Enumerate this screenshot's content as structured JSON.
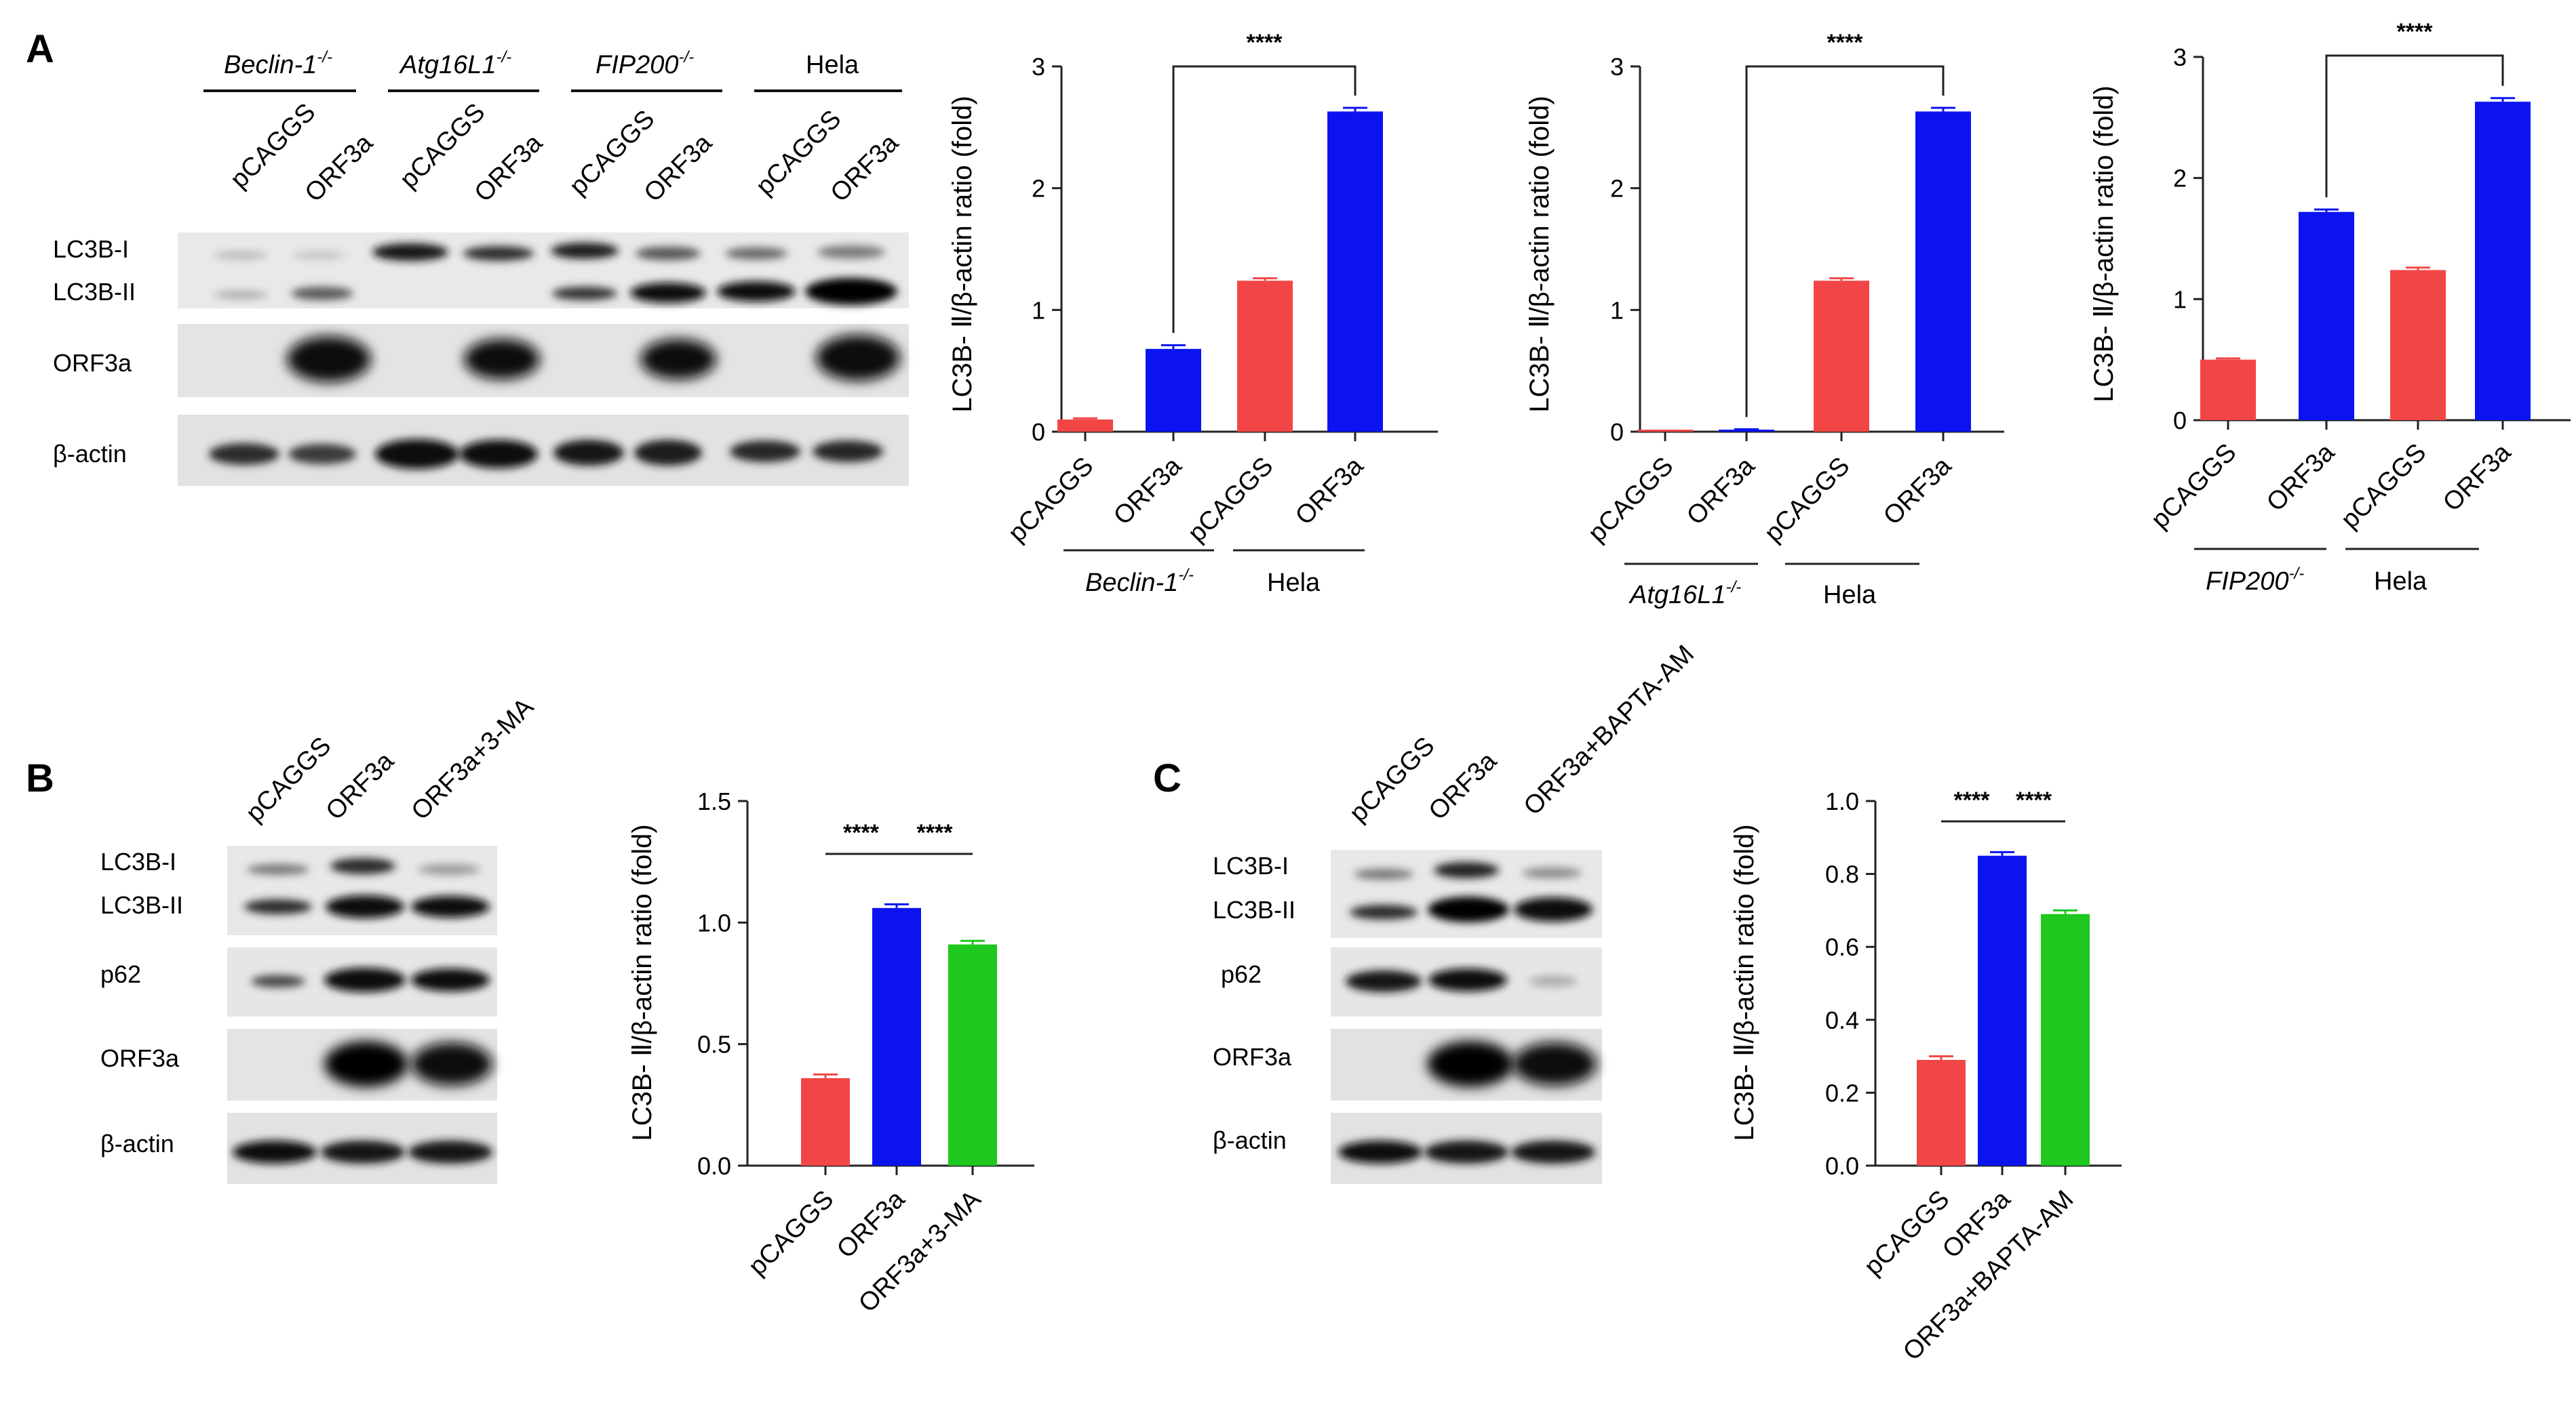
{
  "panels": {
    "A": {
      "letter": "A",
      "blot": {
        "groups": [
          "Beclin-1",
          "Atg16L1",
          "FIP200",
          "Hela"
        ],
        "group_superscripts": [
          "-/-",
          "-/-",
          "-/-",
          ""
        ],
        "group_italic": [
          true,
          true,
          true,
          false
        ],
        "lanes": [
          "pCAGGS",
          "ORF3a",
          "pCAGGS",
          "ORF3a",
          "pCAGGS",
          "ORF3a",
          "pCAGGS",
          "ORF3a"
        ],
        "rows": [
          "LC3B-I",
          "LC3B-II",
          "ORF3a",
          "β-actin"
        ]
      }
    },
    "B": {
      "letter": "B",
      "blot": {
        "lanes": [
          "pCAGGS",
          "ORF3a",
          "ORF3a+3-MA"
        ],
        "rows": [
          "LC3B-I",
          "LC3B-II",
          "p62",
          "ORF3a",
          "β-actin"
        ]
      }
    },
    "C": {
      "letter": "C",
      "blot": {
        "lanes": [
          "pCAGGS",
          "ORF3a",
          "ORF3a+BAPTA-AM"
        ],
        "rows": [
          "LC3B-I",
          "LC3B-II",
          "p62",
          "ORF3a",
          "β-actin"
        ]
      }
    }
  },
  "colors": {
    "red": "#f24646",
    "blue": "#0b14f0",
    "green": "#1ec81e",
    "axis": "#222222"
  },
  "chart_data": [
    {
      "type": "bar",
      "ylabel": "LC3B- Ⅱ/β-actin ratio (fold)",
      "categories": [
        "pCAGGS",
        "ORF3a",
        "pCAGGS",
        "ORF3a"
      ],
      "values": [
        0.1,
        0.68,
        1.24,
        2.63
      ],
      "errors": [
        0.01,
        0.03,
        0.02,
        0.03
      ],
      "bar_colors": [
        "red",
        "blue",
        "red",
        "blue"
      ],
      "ylim": [
        0,
        3
      ],
      "yticks": [
        "0",
        "1",
        "2",
        "3"
      ],
      "ytick_values": [
        0,
        1,
        2,
        3
      ],
      "groups": [
        {
          "name": "Beclin-1",
          "sup": "-/-",
          "italic": true,
          "span": [
            0,
            1
          ]
        },
        {
          "name": "Hela",
          "sup": "",
          "italic": false,
          "span": [
            2,
            3
          ]
        }
      ],
      "significance": [
        {
          "from": 1,
          "to": 3,
          "label": "****"
        }
      ]
    },
    {
      "type": "bar",
      "ylabel": "LC3B- Ⅱ/β-actin ratio (fold)",
      "categories": [
        "pCAGGS",
        "ORF3a",
        "pCAGGS",
        "ORF3a"
      ],
      "values": [
        0.005,
        0.015,
        1.24,
        2.63
      ],
      "errors": [
        0.003,
        0.005,
        0.02,
        0.03
      ],
      "bar_colors": [
        "red",
        "blue",
        "red",
        "blue"
      ],
      "ylim": [
        0,
        3
      ],
      "yticks": [
        "0",
        "1",
        "2",
        "3"
      ],
      "ytick_values": [
        0,
        1,
        2,
        3
      ],
      "groups": [
        {
          "name": "Atg16L1",
          "sup": "-/-",
          "italic": true,
          "span": [
            0,
            1
          ]
        },
        {
          "name": "Hela",
          "sup": "",
          "italic": false,
          "span": [
            2,
            3
          ]
        }
      ],
      "significance": [
        {
          "from": 1,
          "to": 3,
          "label": "****"
        }
      ]
    },
    {
      "type": "bar",
      "ylabel": "LC3B- Ⅱ/β-actin ratio (fold)",
      "categories": [
        "pCAGGS",
        "ORF3a",
        "pCAGGS",
        "ORF3a"
      ],
      "values": [
        0.5,
        1.72,
        1.24,
        2.63
      ],
      "errors": [
        0.01,
        0.02,
        0.02,
        0.03
      ],
      "bar_colors": [
        "red",
        "blue",
        "red",
        "blue"
      ],
      "ylim": [
        0,
        3
      ],
      "yticks": [
        "0",
        "1",
        "2",
        "3"
      ],
      "ytick_values": [
        0,
        1,
        2,
        3
      ],
      "groups": [
        {
          "name": "FIP200",
          "sup": "-/-",
          "italic": true,
          "span": [
            0,
            1
          ]
        },
        {
          "name": "Hela",
          "sup": "",
          "italic": false,
          "span": [
            2,
            3
          ]
        }
      ],
      "significance": [
        {
          "from": 1,
          "to": 3,
          "label": "****"
        }
      ]
    },
    {
      "type": "bar",
      "ylabel": "LC3B- Ⅱ/β-actin ratio (fold)",
      "categories": [
        "pCAGGS",
        "ORF3a",
        "ORF3a+3-MA"
      ],
      "values": [
        0.36,
        1.06,
        0.91
      ],
      "errors": [
        0.015,
        0.015,
        0.015
      ],
      "bar_colors": [
        "red",
        "blue",
        "green"
      ],
      "ylim": [
        0,
        1.5
      ],
      "yticks": [
        "0.0",
        "0.5",
        "1.0",
        "1.5"
      ],
      "ytick_values": [
        0,
        0.5,
        1.0,
        1.5
      ],
      "groups": [],
      "significance": [
        {
          "from": 0,
          "to": 1,
          "label": "****"
        },
        {
          "from": 1,
          "to": 2,
          "label": "****"
        }
      ]
    },
    {
      "type": "bar",
      "ylabel": "LC3B- Ⅱ/β-actin ratio (fold)",
      "categories": [
        "pCAGGS",
        "ORF3a",
        "ORF3a+BAPTA-AM"
      ],
      "values": [
        0.29,
        0.85,
        0.69
      ],
      "errors": [
        0.01,
        0.01,
        0.01
      ],
      "bar_colors": [
        "red",
        "blue",
        "green"
      ],
      "ylim": [
        0,
        1.0
      ],
      "yticks": [
        "0.0",
        "0.2",
        "0.4",
        "0.6",
        "0.8",
        "1.0"
      ],
      "ytick_values": [
        0,
        0.2,
        0.4,
        0.6,
        0.8,
        1.0
      ],
      "groups": [],
      "significance": [
        {
          "from": 0,
          "to": 1,
          "label": "****"
        },
        {
          "from": 1,
          "to": 2,
          "label": "****"
        }
      ]
    }
  ]
}
